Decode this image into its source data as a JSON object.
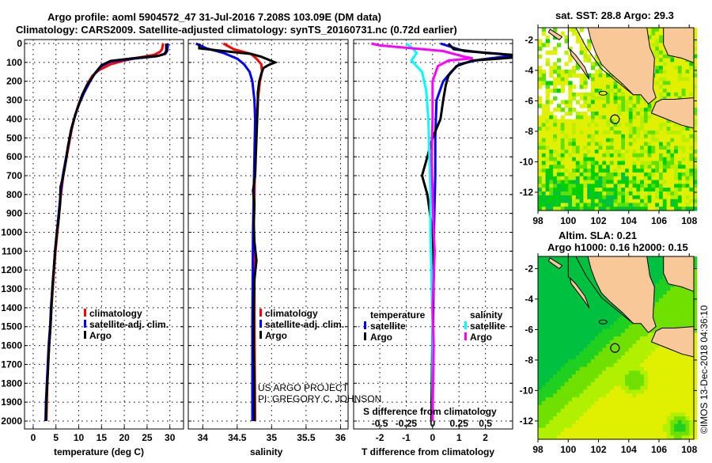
{
  "title": {
    "line1": "Argo profile: aoml 5904572_47 31-Jul-2016 7.208S 103.09E (DM data)",
    "line2": "Climatology: CARS2009. Satellite-adjusted climatology: synTS_20160731.nc (0.72d earlier)"
  },
  "colors": {
    "climatology": "#ff0000",
    "satellite": "#0000ff",
    "argo": "#000000",
    "sal_satellite": "#00ffff",
    "sal_argo": "#ff00ff",
    "land": "#f9c898"
  },
  "depth_axis": {
    "ticks": [
      "0",
      "100",
      "200",
      "300",
      "400",
      "500",
      "600",
      "700",
      "800",
      "900",
      "1000",
      "1100",
      "1200",
      "1300",
      "1400",
      "1500",
      "1600",
      "1700",
      "1800",
      "1900",
      "2000"
    ],
    "ylim": [
      -21,
      2042
    ]
  },
  "credits": {
    "line1": "US ARGO PROJECT",
    "line2": "PI: GREGORY C. JOHNSON",
    "stamp": "©IMOS 13-Dec-2018 04:36:10"
  },
  "chart_data": [
    {
      "type": "line",
      "id": "temperature",
      "xlabel": "temperature (deg C)",
      "xlim": [
        -1.9,
        33
      ],
      "xticks": [
        "0",
        "5",
        "10",
        "15",
        "20",
        "25",
        "30"
      ],
      "legend": [
        "climatology",
        "satellite-adj. clim.",
        "Argo"
      ],
      "series": [
        {
          "name": "climatology",
          "color": "#ff0000",
          "points": [
            [
              28.5,
              0
            ],
            [
              28.3,
              30
            ],
            [
              27.8,
              45
            ],
            [
              26.5,
              60
            ],
            [
              23,
              75
            ],
            [
              20,
              90
            ],
            [
              17,
              110
            ],
            [
              14.5,
              140
            ],
            [
              13,
              170
            ],
            [
              12,
              210
            ],
            [
              11,
              260
            ],
            [
              10,
              320
            ],
            [
              9.2,
              380
            ],
            [
              8.5,
              450
            ],
            [
              7.8,
              540
            ],
            [
              7.2,
              620
            ],
            [
              6.6,
              700
            ],
            [
              6.1,
              800
            ],
            [
              5.7,
              900
            ],
            [
              5.3,
              1000
            ],
            [
              4.9,
              1100
            ],
            [
              4.6,
              1200
            ],
            [
              4.3,
              1300
            ],
            [
              4.0,
              1400
            ],
            [
              3.8,
              1500
            ],
            [
              3.5,
              1600
            ],
            [
              3.3,
              1700
            ],
            [
              3.1,
              1800
            ],
            [
              3.0,
              1900
            ],
            [
              2.9,
              2000
            ]
          ]
        },
        {
          "name": "satellite-adj. clim.",
          "color": "#0000ff",
          "points": [
            [
              29.6,
              0
            ],
            [
              29.4,
              40
            ],
            [
              29,
              55
            ],
            [
              27,
              68
            ],
            [
              22,
              80
            ],
            [
              17,
              95
            ],
            [
              15,
              120
            ],
            [
              13.5,
              160
            ],
            [
              12.5,
              200
            ],
            [
              11.2,
              260
            ],
            [
              10.1,
              320
            ],
            [
              9.2,
              380
            ],
            [
              8.4,
              450
            ],
            [
              7.7,
              540
            ],
            [
              7.1,
              620
            ],
            [
              6.5,
              700
            ],
            [
              6.0,
              800
            ],
            [
              5.6,
              900
            ],
            [
              5.2,
              1000
            ],
            [
              4.8,
              1100
            ],
            [
              4.5,
              1200
            ],
            [
              4.2,
              1300
            ],
            [
              3.9,
              1400
            ],
            [
              3.7,
              1500
            ],
            [
              3.4,
              1600
            ],
            [
              3.2,
              1700
            ],
            [
              3.0,
              1800
            ],
            [
              2.8,
              1900
            ],
            [
              2.7,
              2000
            ]
          ]
        },
        {
          "name": "Argo",
          "color": "#000000",
          "points": [
            [
              29.2,
              0
            ],
            [
              29.2,
              40
            ],
            [
              28.8,
              55
            ],
            [
              27.5,
              65
            ],
            [
              22,
              78
            ],
            [
              17,
              92
            ],
            [
              15,
              115
            ],
            [
              13.8,
              150
            ],
            [
              12.8,
              185
            ],
            [
              11.8,
              220
            ],
            [
              10.8,
              270
            ],
            [
              9.9,
              330
            ],
            [
              9.1,
              390
            ],
            [
              8.3,
              460
            ],
            [
              7.6,
              550
            ],
            [
              7.2,
              620
            ],
            [
              6.6,
              700
            ],
            [
              6.0,
              760
            ],
            [
              5.9,
              850
            ],
            [
              5.5,
              950
            ],
            [
              5.2,
              1000
            ],
            [
              4.8,
              1100
            ],
            [
              4.5,
              1200
            ],
            [
              4.2,
              1300
            ],
            [
              4.0,
              1400
            ],
            [
              3.8,
              1500
            ],
            [
              3.5,
              1600
            ],
            [
              3.3,
              1700
            ],
            [
              3.1,
              1800
            ],
            [
              2.9,
              1900
            ],
            [
              2.8,
              2000
            ]
          ]
        }
      ]
    },
    {
      "type": "line",
      "id": "salinity",
      "xlabel": "salinity",
      "xlim": [
        33.79,
        36.11
      ],
      "xticks": [
        "34",
        "34.5",
        "35",
        "35.5",
        "36"
      ],
      "legend": [
        "climatology",
        "satellite-adj. clim.",
        "Argo"
      ],
      "series": [
        {
          "name": "climatology",
          "color": "#ff0000",
          "points": [
            [
              34.3,
              0
            ],
            [
              34.45,
              30
            ],
            [
              34.7,
              55
            ],
            [
              34.78,
              80
            ],
            [
              34.85,
              110
            ],
            [
              34.86,
              150
            ],
            [
              34.83,
              200
            ],
            [
              34.8,
              300
            ],
            [
              34.78,
              400
            ],
            [
              34.76,
              600
            ],
            [
              34.75,
              800
            ],
            [
              34.74,
              1000
            ],
            [
              34.75,
              1200
            ],
            [
              34.75,
              1500
            ],
            [
              34.76,
              2000
            ]
          ]
        },
        {
          "name": "satellite-adj. clim.",
          "color": "#0000ff",
          "points": [
            [
              33.9,
              0
            ],
            [
              34.05,
              25
            ],
            [
              34.3,
              50
            ],
            [
              34.5,
              80
            ],
            [
              34.6,
              110
            ],
            [
              34.68,
              150
            ],
            [
              34.72,
              200
            ],
            [
              34.75,
              300
            ],
            [
              34.76,
              400
            ],
            [
              34.75,
              600
            ],
            [
              34.73,
              1000
            ],
            [
              34.72,
              1500
            ],
            [
              34.72,
              2000
            ]
          ]
        },
        {
          "name": "Argo",
          "color": "#000000",
          "points": [
            [
              33.95,
              0
            ],
            [
              33.95,
              25
            ],
            [
              34.3,
              40
            ],
            [
              34.7,
              55
            ],
            [
              34.85,
              70
            ],
            [
              34.95,
              85
            ],
            [
              35.05,
              100
            ],
            [
              34.95,
              115
            ],
            [
              34.88,
              130
            ],
            [
              34.85,
              160
            ],
            [
              34.82,
              200
            ],
            [
              34.8,
              260
            ],
            [
              34.8,
              320
            ],
            [
              34.79,
              400
            ],
            [
              34.78,
              500
            ],
            [
              34.77,
              600
            ],
            [
              34.76,
              700
            ],
            [
              34.73,
              780
            ],
            [
              34.75,
              850
            ],
            [
              34.74,
              950
            ],
            [
              34.75,
              1050
            ],
            [
              34.78,
              1150
            ],
            [
              34.75,
              1250
            ],
            [
              34.74,
              1400
            ],
            [
              34.74,
              1600
            ],
            [
              34.75,
              1800
            ],
            [
              34.75,
              2000
            ]
          ]
        }
      ]
    },
    {
      "type": "line",
      "id": "difference",
      "xlabel": "T difference from climatology",
      "x2label": "S difference from climatology",
      "xlim": [
        -2.99,
        3.03
      ],
      "xticks": [
        "-2",
        "-1",
        "0",
        "1",
        "2"
      ],
      "x2ticks": [
        "-0.5",
        "-0.25",
        "0",
        "0.25",
        "0.5"
      ],
      "legend_temperature": {
        "title": "temperature",
        "items": [
          "satellite",
          "Argo"
        ]
      },
      "legend_salinity": {
        "title": "salinity",
        "items": [
          "satellite",
          "Argo"
        ]
      },
      "series": [
        {
          "name": "temperature satellite",
          "color": "#0000ff",
          "units": "T",
          "points": [
            [
              0.3,
              0
            ],
            [
              1.2,
              40
            ],
            [
              2.6,
              55
            ],
            [
              3.0,
              65
            ],
            [
              1.8,
              85
            ],
            [
              1.0,
              110
            ],
            [
              0.7,
              150
            ],
            [
              0.4,
              200
            ],
            [
              0.15,
              300
            ],
            [
              0.1,
              500
            ],
            [
              0.1,
              700
            ],
            [
              0.05,
              1000
            ],
            [
              0.02,
              1500
            ],
            [
              0,
              2000
            ]
          ]
        },
        {
          "name": "temperature Argo",
          "color": "#000000",
          "units": "T",
          "points": [
            [
              0.6,
              0
            ],
            [
              0.8,
              30
            ],
            [
              2,
              50
            ],
            [
              3.0,
              60
            ],
            [
              3.0,
              75
            ],
            [
              1.5,
              90
            ],
            [
              0.9,
              120
            ],
            [
              0.6,
              170
            ],
            [
              0.5,
              220
            ],
            [
              0.4,
              300
            ],
            [
              0.3,
              400
            ],
            [
              0,
              500
            ],
            [
              -0.2,
              600
            ],
            [
              -0.4,
              700
            ],
            [
              -0.2,
              800
            ],
            [
              -0.1,
              900
            ],
            [
              0,
              1000
            ],
            [
              0.05,
              1200
            ],
            [
              0,
              1500
            ],
            [
              -0.05,
              2000
            ]
          ]
        },
        {
          "name": "salinity satellite",
          "color": "#00ffff",
          "units": "S",
          "points": [
            [
              -0.25,
              0
            ],
            [
              -0.2,
              20
            ],
            [
              -0.15,
              50
            ],
            [
              -0.2,
              90
            ],
            [
              -0.1,
              150
            ],
            [
              -0.06,
              250
            ],
            [
              -0.04,
              400
            ],
            [
              -0.03,
              600
            ],
            [
              -0.02,
              800
            ],
            [
              -0.02,
              1000
            ],
            [
              0,
              1500
            ],
            [
              0,
              2000
            ]
          ]
        },
        {
          "name": "salinity Argo",
          "color": "#ff00ff",
          "units": "S",
          "points": [
            [
              -0.58,
              0
            ],
            [
              -0.5,
              10
            ],
            [
              -0.3,
              20
            ],
            [
              0.1,
              40
            ],
            [
              0.3,
              70
            ],
            [
              0.38,
              78
            ],
            [
              0.15,
              90
            ],
            [
              0.05,
              120
            ],
            [
              0,
              200
            ],
            [
              0,
              400
            ],
            [
              -0.01,
              600
            ],
            [
              0.01,
              1000
            ],
            [
              0.02,
              1100
            ],
            [
              0,
              1400
            ],
            [
              0.01,
              1600
            ],
            [
              0,
              2000
            ]
          ]
        }
      ]
    },
    {
      "type": "heatmap",
      "id": "sst-map",
      "title": "sat. SST: 28.8 Argo: 29.3",
      "xlim": [
        98,
        108.3
      ],
      "ylim": [
        -13.2,
        -1.2
      ],
      "xticks": [
        "98",
        "100",
        "102",
        "104",
        "106",
        "108"
      ],
      "yticks": [
        "-2",
        "-4",
        "-6",
        "-8",
        "-10",
        "-12"
      ],
      "float_position": [
        103.09,
        -7.208
      ]
    },
    {
      "type": "heatmap",
      "id": "sla-map",
      "title": "Altim. SLA: 0.21",
      "subtitle": "Argo h1000: 0.16 h2000: 0.15",
      "xlim": [
        98,
        108.3
      ],
      "ylim": [
        -13.2,
        -1.2
      ],
      "xticks": [
        "98",
        "100",
        "102",
        "104",
        "106",
        "108"
      ],
      "yticks": [
        "-2",
        "-4",
        "-6",
        "-8",
        "-10",
        "-12"
      ],
      "float_position": [
        103.09,
        -7.208
      ]
    }
  ]
}
